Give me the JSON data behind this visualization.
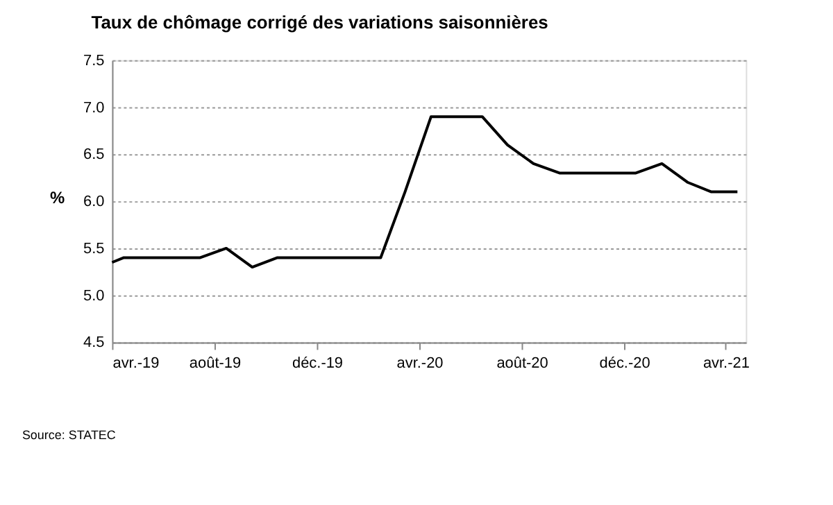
{
  "chart_data": {
    "type": "line",
    "title": "Taux de chômage corrigé des variations saisonnières",
    "ylabel": "%",
    "x": [
      "2019-04-01",
      "2019-04-15",
      "2019-05-15",
      "2019-06-15",
      "2019-07-15",
      "2019-08-15",
      "2019-09-15",
      "2019-10-15",
      "2019-11-15",
      "2019-12-15",
      "2020-01-15",
      "2020-02-15",
      "2020-03-15",
      "2020-04-15",
      "2020-05-15",
      "2020-06-15",
      "2020-07-15",
      "2020-08-15",
      "2020-09-15",
      "2020-10-15",
      "2020-11-15",
      "2020-12-15",
      "2021-01-15",
      "2021-02-15",
      "2021-03-15",
      "2021-04-15"
    ],
    "series": [
      {
        "color": "#000000",
        "values": [
          5.35,
          5.4,
          5.4,
          5.4,
          5.4,
          5.5,
          5.3,
          5.4,
          5.4,
          5.4,
          5.4,
          5.4,
          6.1,
          6.9,
          6.9,
          6.9,
          6.6,
          6.4,
          6.3,
          6.3,
          6.3,
          6.3,
          6.4,
          6.2,
          6.1,
          6.1
        ]
      }
    ],
    "xlim": [
      "2019-04-01",
      "2021-04-25"
    ],
    "xticks": [
      {
        "value": "2019-04-01",
        "label": "avr.-19"
      },
      {
        "value": "2019-08-01",
        "label": "août-19"
      },
      {
        "value": "2019-12-01",
        "label": "déc.-19"
      },
      {
        "value": "2020-04-01",
        "label": "avr.-20"
      },
      {
        "value": "2020-08-01",
        "label": "août-20"
      },
      {
        "value": "2020-12-01",
        "label": "déc.-20"
      },
      {
        "value": "2021-04-01",
        "label": "avr.-21"
      }
    ],
    "ylim": [
      4.5,
      7.5
    ],
    "yticks": [
      {
        "value": 4.5,
        "label": "4.5"
      },
      {
        "value": 5,
        "label": "5.0"
      },
      {
        "value": 5.5,
        "label": "5.5"
      },
      {
        "value": 6,
        "label": "6.0"
      },
      {
        "value": 6.5,
        "label": "6.5"
      },
      {
        "value": 7,
        "label": "7.0"
      },
      {
        "value": 7.5,
        "label": "7.5"
      }
    ],
    "grid": "y",
    "marker": "none",
    "line_style": "solid",
    "annotations": [
      "Source: STATEC"
    ]
  }
}
